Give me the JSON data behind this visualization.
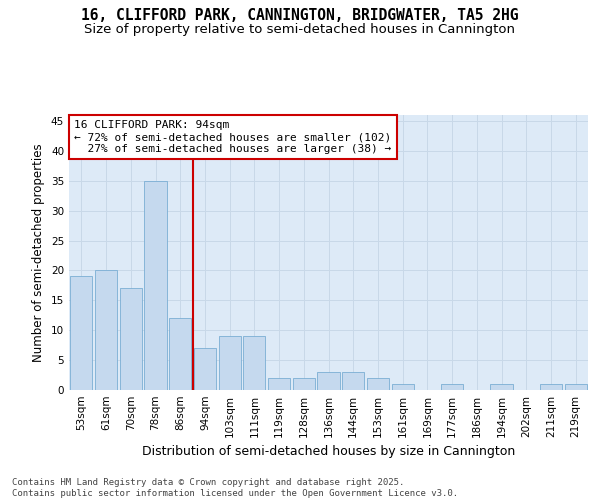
{
  "title_line1": "16, CLIFFORD PARK, CANNINGTON, BRIDGWATER, TA5 2HG",
  "title_line2": "Size of property relative to semi-detached houses in Cannington",
  "xlabel": "Distribution of semi-detached houses by size in Cannington",
  "ylabel": "Number of semi-detached properties",
  "categories": [
    "53sqm",
    "61sqm",
    "70sqm",
    "78sqm",
    "86sqm",
    "94sqm",
    "103sqm",
    "111sqm",
    "119sqm",
    "128sqm",
    "136sqm",
    "144sqm",
    "153sqm",
    "161sqm",
    "169sqm",
    "177sqm",
    "186sqm",
    "194sqm",
    "202sqm",
    "211sqm",
    "219sqm"
  ],
  "values": [
    19,
    20,
    17,
    35,
    12,
    7,
    9,
    9,
    2,
    2,
    3,
    3,
    2,
    1,
    0,
    1,
    0,
    1,
    0,
    1,
    1
  ],
  "bar_color": "#c5d9ee",
  "bar_edge_color": "#7aaed4",
  "grid_color": "#c8d8e8",
  "bg_color": "#ddeaf7",
  "vline_x_index": 5,
  "vline_color": "#cc0000",
  "annotation_line1": "16 CLIFFORD PARK: 94sqm",
  "annotation_line2": "← 72% of semi-detached houses are smaller (102)",
  "annotation_line3": "  27% of semi-detached houses are larger (38) →",
  "annotation_box_color": "#cc0000",
  "ylim": [
    0,
    46
  ],
  "yticks": [
    0,
    5,
    10,
    15,
    20,
    25,
    30,
    35,
    40,
    45
  ],
  "footer_text": "Contains HM Land Registry data © Crown copyright and database right 2025.\nContains public sector information licensed under the Open Government Licence v3.0.",
  "title_fontsize": 10.5,
  "subtitle_fontsize": 9.5,
  "ylabel_fontsize": 8.5,
  "xlabel_fontsize": 9,
  "tick_fontsize": 7.5,
  "ann_fontsize": 8,
  "footer_fontsize": 6.5
}
